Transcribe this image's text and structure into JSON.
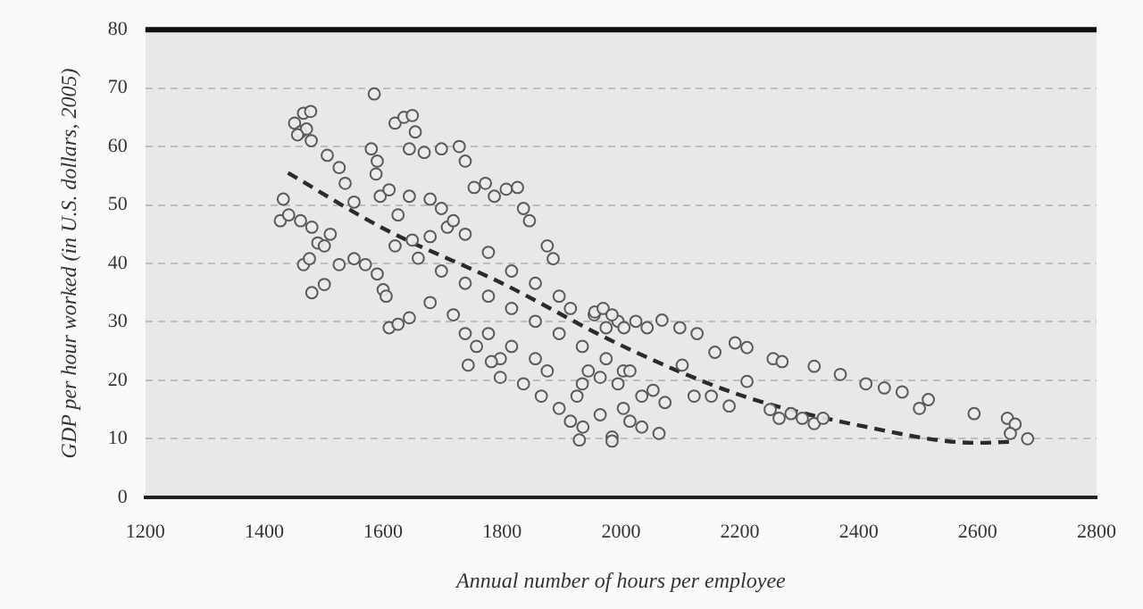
{
  "chart_data": {
    "type": "scatter",
    "xlabel": "Annual number of hours per employee",
    "ylabel": "GDP per hour worked (in U.S. dollars, 2005)",
    "xlim": [
      1200,
      2800
    ],
    "xticks": [
      1200,
      1400,
      1600,
      1800,
      2000,
      2200,
      2400,
      2600,
      2800
    ],
    "ylim": [
      0,
      80
    ],
    "yticks": [
      0,
      10,
      20,
      30,
      40,
      50,
      60,
      70,
      80
    ],
    "grid": "y",
    "legend": false,
    "series": [
      {
        "type": "scatter",
        "marker": "circle",
        "color": "#5a5a5a",
        "x": [
          1451,
          1466,
          1478,
          1461,
          1471,
          1479,
          1456,
          1585,
          1506,
          1526,
          1536,
          1551,
          1620,
          1635,
          1649,
          1654,
          1580,
          1590,
          1588,
          1644,
          1669,
          1698,
          1728,
          1738,
          1753,
          1772,
          1787,
          1807,
          1826,
          1836,
          1846,
          1876,
          1886,
          1432,
          1427,
          1441,
          1461,
          1480,
          1490,
          1466,
          1476,
          1501,
          1511,
          1480,
          1501,
          1526,
          1551,
          1570,
          1590,
          1600,
          1605,
          1595,
          1610,
          1625,
          1644,
          1610,
          1625,
          1644,
          1620,
          1649,
          1679,
          1708,
          1738,
          1777,
          1816,
          1856,
          1896,
          1915,
          1679,
          1698,
          1718,
          1659,
          1698,
          1738,
          1777,
          1816,
          1856,
          1896,
          1935,
          1975,
          1679,
          1718,
          1738,
          1757,
          1797,
          1836,
          1866,
          1896,
          1915,
          1930,
          1965,
          1985,
          1743,
          1782,
          1797,
          1777,
          1816,
          1856,
          1876,
          1935,
          1955,
          1975,
          1995,
          2004,
          2004,
          1956,
          1970,
          1985,
          2005,
          2025,
          2044,
          2069,
          2099,
          2128,
          2158,
          2192,
          2212,
          2256,
          2271,
          2325,
          2369,
          2412,
          2443,
          2473,
          2502,
          2517,
          2594,
          2650,
          2663,
          2655,
          2684,
          1945,
          1965,
          1995,
          2015,
          2035,
          2054,
          2074,
          2015,
          2035,
          2064,
          1985,
          2103,
          2123,
          2152,
          2182,
          2212,
          2251,
          2266,
          2286,
          2305,
          2325,
          2340,
          1926,
          1936
        ],
        "values": [
          64,
          65.7,
          66,
          62.5,
          63,
          61,
          62,
          69,
          58.5,
          56.4,
          53.7,
          50.5,
          64,
          65,
          65.3,
          62.5,
          59.6,
          57.5,
          55.3,
          59.6,
          59,
          59.6,
          60,
          57.5,
          53,
          53.7,
          51.5,
          52.7,
          53,
          49.4,
          47.3,
          43,
          40.8,
          51,
          47.3,
          48.3,
          47.3,
          46.2,
          43.5,
          39.8,
          40.8,
          43,
          45,
          35,
          36.4,
          39.8,
          40.8,
          39.8,
          38.2,
          35.5,
          34.4,
          51.5,
          52.6,
          48.3,
          51.5,
          29,
          29.6,
          30.7,
          43,
          44,
          44.6,
          46.2,
          45,
          41.9,
          38.7,
          36.6,
          34.4,
          32.3,
          51,
          49.4,
          47.3,
          40.9,
          38.7,
          36.6,
          34.4,
          32.3,
          30.1,
          28,
          25.8,
          23.7,
          33.3,
          31.2,
          28,
          25.8,
          23.7,
          19.4,
          17.3,
          15.2,
          13,
          9.8,
          14.1,
          10.3,
          22.6,
          23.2,
          20.5,
          28,
          25.8,
          23.7,
          21.6,
          19.4,
          31.2,
          29,
          30.1,
          21.6,
          15.2,
          31.7,
          32.3,
          31.2,
          29,
          30.1,
          29,
          30.3,
          29,
          28,
          24.8,
          26.4,
          25.6,
          23.7,
          23.2,
          22.4,
          21,
          19.4,
          18.7,
          18,
          15.2,
          16.7,
          14.3,
          13.5,
          12.5,
          10.9,
          10,
          21.6,
          20.5,
          19.4,
          21.6,
          17.3,
          18.3,
          16.2,
          13,
          12,
          10.9,
          9.6,
          22.6,
          17.3,
          17.3,
          15.6,
          19.8,
          15,
          13.5,
          14.3,
          13.5,
          12.6,
          13.5,
          17.3,
          12
        ]
      },
      {
        "type": "line",
        "marker": "none",
        "line_style": "dashed",
        "color": "#2b2b2b",
        "x": [
          1440,
          1600,
          1800,
          2000,
          2200,
          2400,
          2600,
          2660
        ],
        "values": [
          55.5,
          46,
          36.6,
          26,
          17.5,
          12.3,
          9.3,
          9.5
        ]
      }
    ]
  }
}
